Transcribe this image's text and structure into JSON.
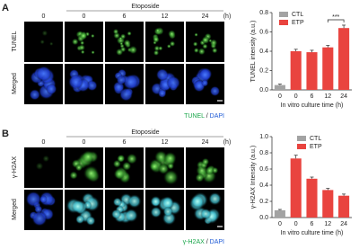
{
  "figure": {
    "panels": [
      {
        "label": "A",
        "condition": "Etoposide",
        "columns": [
          "0",
          "0",
          "6",
          "12",
          "24"
        ],
        "unit": "(h)",
        "rows": [
          "TUNEL",
          "Merged"
        ],
        "caption": {
          "stain": "TUNEL",
          "separator": "/",
          "counterstain": "DAPI"
        }
      },
      {
        "label": "B",
        "condition": "Etoposide",
        "columns": [
          "0",
          "0",
          "6",
          "12",
          "24"
        ],
        "unit": "(h)",
        "rows": [
          "γ-H2AX",
          "Merged"
        ],
        "caption": {
          "stain": "γ-H2AX",
          "separator": "/",
          "counterstain": "DAPI"
        }
      }
    ]
  },
  "chart_data": [
    {
      "type": "bar",
      "x_label": "In vitro culture time (h)",
      "y_label": "TUNEL intensity (a.u.)",
      "categories": [
        "0",
        "0",
        "6",
        "12",
        "24"
      ],
      "series": [
        {
          "name": "CTL",
          "color": "#a3a3a3",
          "values": [
            0.05,
            null,
            null,
            null,
            null
          ],
          "errors": [
            0.01,
            null,
            null,
            null,
            null
          ]
        },
        {
          "name": "ETP",
          "color": "#e9443f",
          "values": [
            null,
            0.4,
            0.39,
            0.44,
            0.64
          ],
          "errors": [
            null,
            0.02,
            0.02,
            0.02,
            0.03
          ]
        }
      ],
      "ylim": [
        0,
        0.8
      ],
      "yticks": [
        {
          "value": 0,
          "label": "0.0"
        },
        0.2,
        0.4,
        0.6,
        0.8
      ],
      "significance": "***",
      "legend": "upper-left"
    },
    {
      "type": "bar",
      "x_label": "In vitro culture time (h)",
      "y_label": "γ-H2AX Intensity (a.u.)",
      "categories": [
        "0",
        "0",
        "6",
        "12",
        "24"
      ],
      "series": [
        {
          "name": "CTL",
          "color": "#a3a3a3",
          "values": [
            0.09,
            null,
            null,
            null,
            null
          ],
          "errors": [
            0.01,
            null,
            null,
            null,
            null
          ]
        },
        {
          "name": "ETP",
          "color": "#e9443f",
          "values": [
            null,
            0.73,
            0.48,
            0.34,
            0.27
          ],
          "errors": [
            null,
            0.04,
            0.02,
            0.02,
            0.02
          ]
        }
      ],
      "ylim": [
        0,
        1
      ],
      "yticks": [
        {
          "value": 0,
          "label": "0.0"
        },
        0.2,
        0.4,
        0.6,
        0.8,
        {
          "value": 1,
          "label": "1.0"
        }
      ],
      "legend": "upper-right"
    }
  ]
}
